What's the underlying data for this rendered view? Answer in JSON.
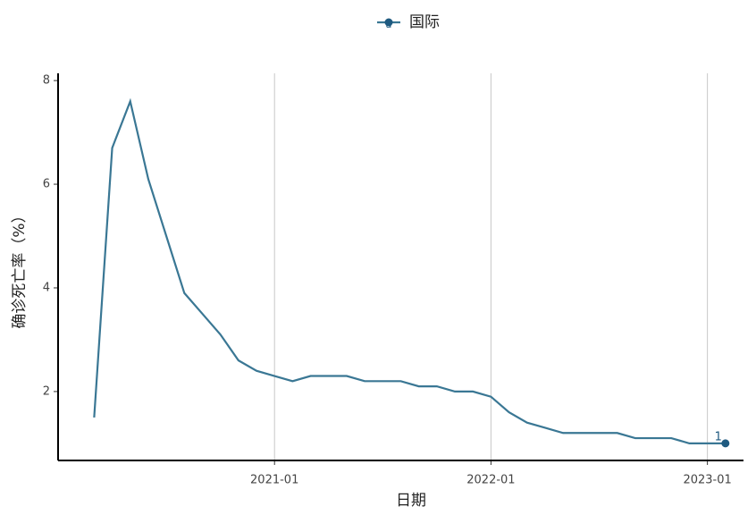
{
  "chart_data": {
    "type": "line",
    "legend_key": "a",
    "x_label": "日期",
    "y_label": "确诊死亡率（%）",
    "x": [
      "2020-03",
      "2020-04",
      "2020-05",
      "2020-06",
      "2020-07",
      "2020-08",
      "2020-09",
      "2020-10",
      "2020-11",
      "2020-12",
      "2021-01",
      "2021-02",
      "2021-03",
      "2021-04",
      "2021-05",
      "2021-06",
      "2021-07",
      "2021-08",
      "2021-09",
      "2021-10",
      "2021-11",
      "2021-12",
      "2022-01",
      "2022-02",
      "2022-03",
      "2022-04",
      "2022-05",
      "2022-06",
      "2022-07",
      "2022-08",
      "2022-09",
      "2022-10",
      "2022-11",
      "2022-12",
      "2023-01",
      "2023-02"
    ],
    "series": [
      {
        "name": "国际",
        "color": "#3a7794",
        "values": [
          1.5,
          6.7,
          7.6,
          6.1,
          5.0,
          3.9,
          3.5,
          3.1,
          2.6,
          2.4,
          2.3,
          2.2,
          2.3,
          2.3,
          2.3,
          2.2,
          2.2,
          2.2,
          2.1,
          2.1,
          2.0,
          2.0,
          1.9,
          1.6,
          1.4,
          1.3,
          1.2,
          1.2,
          1.2,
          1.2,
          1.1,
          1.1,
          1.1,
          1.0,
          1.0,
          1.0
        ],
        "value_labels": [
          null,
          null,
          null,
          null,
          null,
          null,
          null,
          null,
          null,
          null,
          null,
          null,
          null,
          null,
          null,
          null,
          null,
          null,
          null,
          null,
          null,
          null,
          null,
          null,
          null,
          null,
          null,
          null,
          null,
          null,
          null,
          null,
          null,
          null,
          null,
          "1"
        ]
      }
    ],
    "xlim": [
      "2020-01",
      "2023-03"
    ],
    "xticks": [
      "2021-01",
      "2022-01",
      "2023-01"
    ],
    "ylim": [
      0.67,
      8.14
    ],
    "yticks": [
      2,
      4,
      6,
      8
    ],
    "grid": "x",
    "legend_position": "top"
  }
}
